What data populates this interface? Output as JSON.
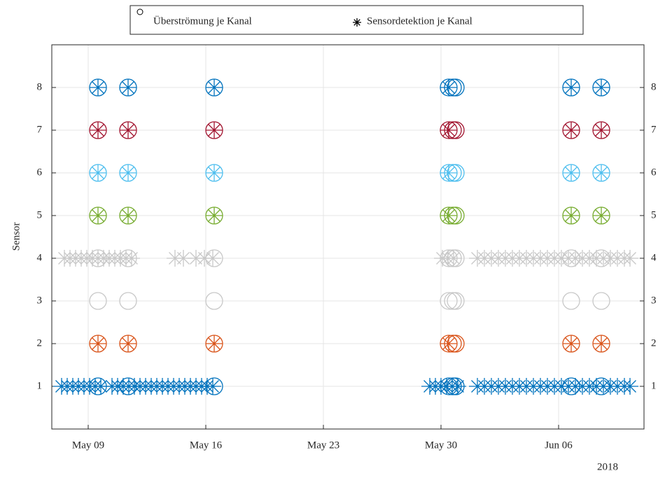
{
  "chart_data": {
    "type": "scatter",
    "y_label": "Sensor",
    "x_year_label": "2018",
    "xlim": [
      "2018-05-06 20:00",
      "2018-06-11 02:00"
    ],
    "xticks": [
      {
        "value": "2018-05-09 00:00",
        "label": "May 09"
      },
      {
        "value": "2018-05-16 00:00",
        "label": "May 16"
      },
      {
        "value": "2018-05-23 00:00",
        "label": "May 23"
      },
      {
        "value": "2018-05-30 00:00",
        "label": "May 30"
      },
      {
        "value": "2018-06-06 00:00",
        "label": "Jun 06"
      }
    ],
    "ylim": [
      0,
      9
    ],
    "yticks": [
      1,
      2,
      3,
      4,
      5,
      6,
      7,
      8
    ],
    "grid": true,
    "right_axis_mirror": true,
    "legend": "north-outside",
    "legend_color": "#000000",
    "channel_colors": [
      "#0072BD",
      "#D95319",
      "#C8C8C8",
      "#C8C8C8",
      "#77AC30",
      "#4DBEEE",
      "#A2142F",
      "#0072BD"
    ],
    "series": [
      {
        "name": "Überströmung je Kanal",
        "marker": "o",
        "x": [
          "2018-05-09 14:00",
          "2018-05-11 09:00",
          "2018-05-16 12:00",
          "2018-05-30 11:00",
          "2018-05-30 17:00",
          "2018-05-30 21:00",
          "2018-06-06 18:00",
          "2018-06-08 13:00",
          "2018-05-09 14:00",
          "2018-05-11 09:00",
          "2018-05-16 12:00",
          "2018-05-30 11:00",
          "2018-05-30 17:00",
          "2018-05-30 21:00",
          "2018-06-06 18:00",
          "2018-06-08 13:00",
          "2018-05-09 14:00",
          "2018-05-11 09:00",
          "2018-05-16 12:00",
          "2018-05-30 11:00",
          "2018-05-30 17:00",
          "2018-05-30 21:00",
          "2018-06-06 18:00",
          "2018-06-08 13:00",
          "2018-05-09 14:00",
          "2018-05-11 09:00",
          "2018-05-16 12:00",
          "2018-05-30 11:00",
          "2018-05-30 17:00",
          "2018-05-30 21:00",
          "2018-06-06 18:00",
          "2018-06-08 13:00",
          "2018-05-09 14:00",
          "2018-05-11 09:00",
          "2018-05-16 12:00",
          "2018-05-30 11:00",
          "2018-05-30 17:00",
          "2018-05-30 21:00",
          "2018-06-06 18:00",
          "2018-06-08 13:00",
          "2018-05-09 14:00",
          "2018-05-11 09:00",
          "2018-05-16 12:00",
          "2018-05-30 11:00",
          "2018-05-30 17:00",
          "2018-05-30 21:00",
          "2018-06-06 18:00",
          "2018-06-08 13:00",
          "2018-05-09 14:00",
          "2018-05-11 09:00",
          "2018-05-16 12:00",
          "2018-05-30 11:00",
          "2018-05-30 17:00",
          "2018-05-30 21:00",
          "2018-06-06 18:00",
          "2018-06-08 13:00",
          "2018-05-09 14:00",
          "2018-05-11 09:00",
          "2018-05-16 12:00",
          "2018-05-30 11:00",
          "2018-05-30 17:00",
          "2018-05-30 21:00",
          "2018-06-06 18:00",
          "2018-06-08 13:00"
        ],
        "values": [
          1,
          1,
          1,
          1,
          1,
          1,
          1,
          1,
          2,
          2,
          2,
          2,
          2,
          2,
          2,
          2,
          3,
          3,
          3,
          3,
          3,
          3,
          3,
          3,
          4,
          4,
          4,
          4,
          4,
          4,
          4,
          4,
          5,
          5,
          5,
          5,
          5,
          5,
          5,
          5,
          6,
          6,
          6,
          6,
          6,
          6,
          6,
          6,
          7,
          7,
          7,
          7,
          7,
          7,
          7,
          7,
          8,
          8,
          8,
          8,
          8,
          8,
          8,
          8
        ]
      },
      {
        "name": "Sensordetektion je Kanal",
        "marker": "*",
        "x": [
          "2018-05-09 14:00",
          "2018-05-11 09:00",
          "2018-05-16 12:00",
          "2018-05-30 11:00",
          "2018-06-06 18:00",
          "2018-06-08 13:00",
          "2018-05-09 14:00",
          "2018-05-11 09:00",
          "2018-05-16 12:00",
          "2018-05-30 11:00",
          "2018-06-06 18:00",
          "2018-06-08 13:00",
          "2018-05-09 14:00",
          "2018-05-11 09:00",
          "2018-05-16 12:00",
          "2018-05-30 11:00",
          "2018-06-06 18:00",
          "2018-06-08 13:00",
          "2018-05-09 14:00",
          "2018-05-11 09:00",
          "2018-05-16 12:00",
          "2018-05-30 11:00",
          "2018-06-06 18:00",
          "2018-06-08 13:00",
          "2018-05-09 14:00",
          "2018-05-11 09:00",
          "2018-05-16 12:00",
          "2018-05-30 11:00",
          "2018-06-06 18:00",
          "2018-06-08 13:00",
          "2018-05-07 10:00",
          "2018-05-07 18:00",
          "2018-05-08 02:00",
          "2018-05-08 10:00",
          "2018-05-08 18:00",
          "2018-05-09 02:00",
          "2018-05-09 10:00",
          "2018-05-09 18:00",
          "2018-05-10 10:00",
          "2018-05-10 18:00",
          "2018-05-11 02:00",
          "2018-05-11 10:00",
          "2018-05-11 18:00",
          "2018-05-12 02:00",
          "2018-05-12 10:00",
          "2018-05-12 18:00",
          "2018-05-13 02:00",
          "2018-05-13 10:00",
          "2018-05-13 18:00",
          "2018-05-14 02:00",
          "2018-05-14 10:00",
          "2018-05-14 18:00",
          "2018-05-15 02:00",
          "2018-05-15 10:00",
          "2018-05-15 18:00",
          "2018-05-16 02:00",
          "2018-05-16 10:00",
          "2018-05-29 08:00",
          "2018-05-29 16:00",
          "2018-05-30 00:00",
          "2018-05-30 08:00",
          "2018-05-30 16:00",
          "2018-05-31 00:00",
          "2018-06-01 04:00",
          "2018-06-01 14:00",
          "2018-06-02 00:00",
          "2018-06-02 10:00",
          "2018-06-02 20:00",
          "2018-06-03 06:00",
          "2018-06-03 16:00",
          "2018-06-04 02:00",
          "2018-06-04 12:00",
          "2018-06-04 22:00",
          "2018-06-05 08:00",
          "2018-06-05 18:00",
          "2018-06-06 04:00",
          "2018-06-06 14:00",
          "2018-06-07 00:00",
          "2018-06-07 10:00",
          "2018-06-07 20:00",
          "2018-06-08 06:00",
          "2018-06-08 16:00",
          "2018-06-09 02:00",
          "2018-06-09 12:00",
          "2018-06-09 22:00",
          "2018-06-10 06:00",
          "2018-05-07 14:00",
          "2018-05-07 22:00",
          "2018-05-08 06:00",
          "2018-05-08 14:00",
          "2018-05-08 22:00",
          "2018-05-09 06:00",
          "2018-05-09 14:00",
          "2018-05-09 22:00",
          "2018-05-10 06:00",
          "2018-05-10 14:00",
          "2018-05-10 22:00",
          "2018-05-11 06:00",
          "2018-05-11 14:00",
          "2018-05-14 04:00",
          "2018-05-14 16:00",
          "2018-05-15 10:00",
          "2018-05-15 22:00",
          "2018-05-16 10:00",
          "2018-05-30 02:00",
          "2018-05-30 10:00",
          "2018-05-30 18:00",
          "2018-06-01 04:00",
          "2018-06-01 14:00",
          "2018-06-02 00:00",
          "2018-06-02 10:00",
          "2018-06-02 20:00",
          "2018-06-03 06:00",
          "2018-06-03 16:00",
          "2018-06-04 02:00",
          "2018-06-04 12:00",
          "2018-06-04 22:00",
          "2018-06-05 08:00",
          "2018-06-05 18:00",
          "2018-06-06 04:00",
          "2018-06-06 14:00",
          "2018-06-07 00:00",
          "2018-06-07 10:00",
          "2018-06-07 20:00",
          "2018-06-08 06:00",
          "2018-06-08 16:00",
          "2018-06-09 02:00",
          "2018-06-09 12:00",
          "2018-06-09 22:00",
          "2018-06-10 06:00"
        ],
        "values": [
          2,
          2,
          2,
          2,
          2,
          2,
          5,
          5,
          5,
          5,
          5,
          5,
          6,
          6,
          6,
          6,
          6,
          6,
          7,
          7,
          7,
          7,
          7,
          7,
          8,
          8,
          8,
          8,
          8,
          8,
          1,
          1,
          1,
          1,
          1,
          1,
          1,
          1,
          1,
          1,
          1,
          1,
          1,
          1,
          1,
          1,
          1,
          1,
          1,
          1,
          1,
          1,
          1,
          1,
          1,
          1,
          1,
          1,
          1,
          1,
          1,
          1,
          1,
          1,
          1,
          1,
          1,
          1,
          1,
          1,
          1,
          1,
          1,
          1,
          1,
          1,
          1,
          1,
          1,
          1,
          1,
          1,
          1,
          1,
          1,
          1,
          4,
          4,
          4,
          4,
          4,
          4,
          4,
          4,
          4,
          4,
          4,
          4,
          4,
          4,
          4,
          4,
          4,
          4,
          4,
          4,
          4,
          4,
          4,
          4,
          4,
          4,
          4,
          4,
          4,
          4,
          4,
          4,
          4,
          4,
          4,
          4,
          4,
          4,
          4,
          4,
          4,
          4,
          4,
          4
        ]
      }
    ]
  }
}
